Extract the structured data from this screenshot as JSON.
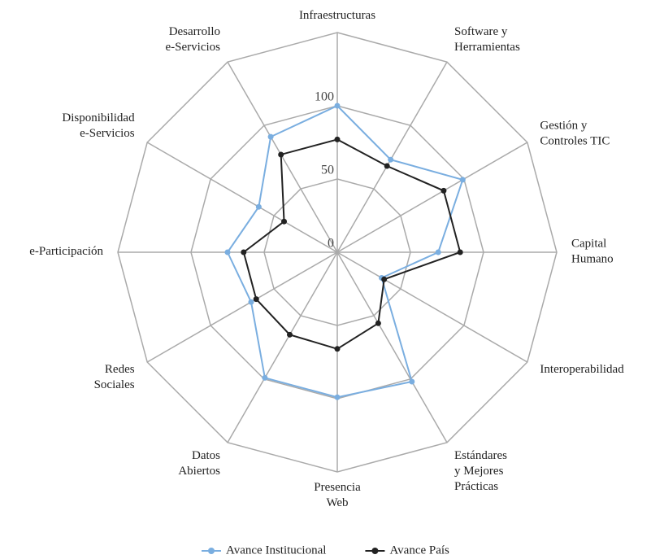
{
  "chart_data": {
    "type": "radar",
    "categories": [
      "Infraestructuras",
      "Software y\nHerramientas",
      "Gestión y\nControles TIC",
      "Capital\nHumano",
      "Interoperabilidad",
      "Estándares\ny Mejores\nPrácticas",
      "Presencia\nWeb",
      "Datos\nAbiertos",
      "Redes\nSociales",
      "e-Participación",
      "Disponibilidad\ne-Servicios",
      "Desarrollo\ne-Servicios"
    ],
    "series": [
      {
        "name": "Avance Institucional",
        "color": "#7aaee0",
        "values": [
          100,
          73,
          99,
          69,
          35,
          102,
          99,
          99,
          68,
          75,
          62,
          91
        ]
      },
      {
        "name": "Avance País",
        "color": "#222222",
        "values": [
          77,
          68,
          84,
          84,
          37,
          56,
          66,
          65,
          64,
          64,
          42,
          77
        ]
      }
    ],
    "rlim": [
      0,
      150
    ],
    "rticks": [
      0,
      50,
      100
    ],
    "legend": "bottom"
  }
}
